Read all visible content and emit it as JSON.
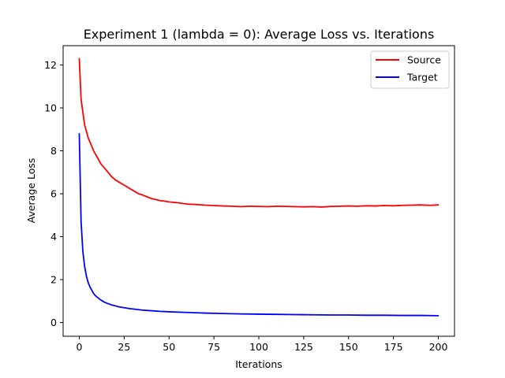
{
  "chart_data": {
    "type": "line",
    "title": "Experiment 1 (lambda = 0): Average Loss vs. Iterations",
    "xlabel": "Iterations",
    "ylabel": "Average Loss",
    "xlim": [
      -9,
      209
    ],
    "ylim": [
      -0.64,
      12.9
    ],
    "xticks": [
      "0",
      "25",
      "50",
      "75",
      "100",
      "125",
      "150",
      "175",
      "200"
    ],
    "yticks": [
      "0",
      "2",
      "4",
      "6",
      "8",
      "10",
      "12"
    ],
    "grid": false,
    "legend_position": "top-right",
    "series": [
      {
        "name": "Source",
        "color": "#ff0000",
        "x": [
          0,
          1,
          2,
          3,
          4,
          5,
          6,
          7,
          8,
          9,
          10,
          12,
          14,
          16,
          18,
          20,
          22,
          25,
          28,
          30,
          33,
          35,
          38,
          40,
          43,
          45,
          48,
          50,
          55,
          60,
          65,
          70,
          75,
          80,
          85,
          90,
          95,
          100,
          105,
          110,
          115,
          120,
          125,
          130,
          135,
          140,
          145,
          150,
          155,
          160,
          165,
          170,
          175,
          180,
          185,
          190,
          195,
          200
        ],
        "y": [
          12.3,
          10.4,
          9.8,
          9.2,
          8.9,
          8.6,
          8.4,
          8.2,
          8.0,
          7.85,
          7.7,
          7.4,
          7.2,
          7.0,
          6.8,
          6.65,
          6.55,
          6.4,
          6.25,
          6.15,
          6.0,
          5.95,
          5.85,
          5.78,
          5.72,
          5.68,
          5.65,
          5.62,
          5.58,
          5.52,
          5.5,
          5.47,
          5.45,
          5.43,
          5.42,
          5.4,
          5.42,
          5.41,
          5.4,
          5.42,
          5.41,
          5.4,
          5.39,
          5.4,
          5.38,
          5.41,
          5.42,
          5.43,
          5.42,
          5.44,
          5.43,
          5.45,
          5.44,
          5.46,
          5.47,
          5.48,
          5.46,
          5.48
        ]
      },
      {
        "name": "Target",
        "color": "#0000ff",
        "x": [
          0,
          1,
          2,
          3,
          4,
          5,
          6,
          7,
          8,
          9,
          10,
          12,
          14,
          16,
          18,
          20,
          22,
          25,
          28,
          30,
          35,
          40,
          45,
          50,
          60,
          70,
          80,
          90,
          100,
          110,
          120,
          130,
          140,
          150,
          160,
          170,
          180,
          190,
          200
        ],
        "y": [
          8.8,
          4.7,
          3.3,
          2.6,
          2.15,
          1.85,
          1.65,
          1.5,
          1.35,
          1.25,
          1.18,
          1.05,
          0.95,
          0.88,
          0.82,
          0.78,
          0.73,
          0.69,
          0.65,
          0.63,
          0.58,
          0.55,
          0.52,
          0.5,
          0.47,
          0.44,
          0.42,
          0.4,
          0.39,
          0.38,
          0.37,
          0.36,
          0.35,
          0.35,
          0.34,
          0.34,
          0.33,
          0.33,
          0.32
        ]
      }
    ]
  }
}
